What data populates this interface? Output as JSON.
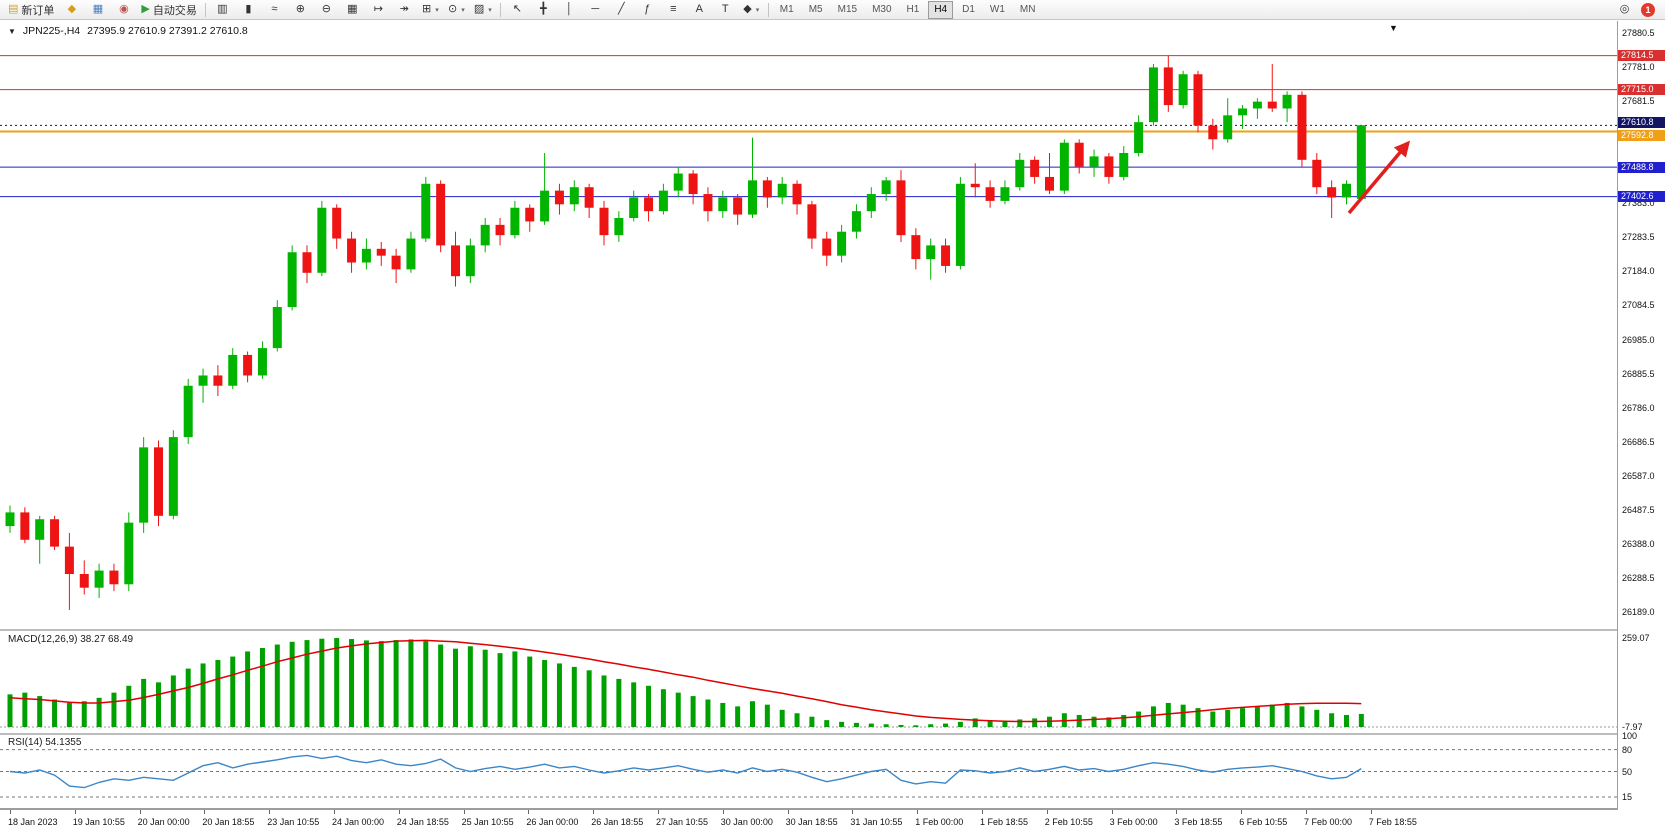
{
  "toolbar": {
    "groups": [
      {
        "name": "trade-group",
        "buttons": [
          {
            "name": "new-order-button",
            "label": "新订单",
            "glyph": "▤",
            "glyph_color": "#c8a23a"
          },
          {
            "name": "profiles-button",
            "glyph": "◆",
            "glyph_color": "#d4a017"
          },
          {
            "name": "charts-grid-button",
            "glyph": "▦",
            "glyph_color": "#4a7ebb"
          },
          {
            "name": "navigator-button",
            "glyph": "◉",
            "glyph_color": "#c0504d"
          },
          {
            "name": "autotrading-button",
            "label": "自动交易",
            "glyph": "▶",
            "glyph_color": "#2e9e3f"
          }
        ]
      },
      {
        "name": "chart-controls-group",
        "buttons": [
          {
            "name": "bar-chart-button",
            "glyph": "▥"
          },
          {
            "name": "candlestick-chart-button",
            "glyph": "▮"
          },
          {
            "name": "line-chart-button",
            "glyph": "≈"
          },
          {
            "name": "zoom-in-button",
            "glyph": "⊕"
          },
          {
            "name": "zoom-out-button",
            "glyph": "⊖"
          },
          {
            "name": "tile-windows-button",
            "glyph": "▦"
          },
          {
            "name": "auto-scroll-button",
            "glyph": "↦"
          },
          {
            "name": "chart-shift-button",
            "glyph": "↠"
          },
          {
            "name": "indicators-button",
            "glyph": "⊞",
            "dropdown": true
          },
          {
            "name": "periods-button",
            "glyph": "⊙",
            "dropdown": true
          },
          {
            "name": "templates-button",
            "glyph": "▨",
            "dropdown": true
          }
        ]
      },
      {
        "name": "draw-tools-group",
        "buttons": [
          {
            "name": "cursor-button",
            "glyph": "↖"
          },
          {
            "name": "crosshair-button",
            "glyph": "╋"
          },
          {
            "name": "vertical-line-button",
            "glyph": "│"
          },
          {
            "name": "horizontal-line-button",
            "glyph": "─"
          },
          {
            "name": "trendline-button",
            "glyph": "╱"
          },
          {
            "name": "fibonacci-button",
            "glyph": "ƒ"
          },
          {
            "name": "channel-button",
            "glyph": "≡"
          },
          {
            "name": "text-button",
            "glyph": "A"
          },
          {
            "name": "label-button",
            "glyph": "T"
          },
          {
            "name": "shapes-button",
            "glyph": "◆",
            "dropdown": true
          }
        ]
      }
    ],
    "timeframes": {
      "options": [
        "M1",
        "M5",
        "M15",
        "M30",
        "H1",
        "H4",
        "D1",
        "W1",
        "MN"
      ],
      "active": "H4"
    },
    "search_glyph": "◎",
    "notification_count": "1"
  },
  "chart": {
    "title_arrow": "▼",
    "symbol_period": "JPN225-,H4",
    "ohlc": "27395.9 27610.9 27391.2 27610.8",
    "object_marker": "▼",
    "price_ticks": [
      "27880.5",
      "27781.0",
      "27681.5",
      "27582.0",
      "27482.5",
      "27383.0",
      "27283.5",
      "27184.0",
      "27084.5",
      "26985.0",
      "26885.5",
      "26786.0",
      "26686.5",
      "26587.0",
      "26487.5",
      "26388.0",
      "26288.5",
      "26189.0"
    ],
    "levels": [
      {
        "name": "resistance-line-1",
        "label": "27814.5",
        "value": 27814.5,
        "color": "#d83030",
        "width": 1,
        "dy": 0
      },
      {
        "name": "resistance-line-2",
        "label": "27715.0",
        "value": 27715.0,
        "color": "#d83030",
        "width": 1,
        "dy": 0
      },
      {
        "name": "pivot-line",
        "label": "27592.8",
        "value": 27592.8,
        "color": "#f0a018",
        "width": 2,
        "dy": 4
      },
      {
        "name": "support-line-1",
        "label": "27488.8",
        "value": 27488.8,
        "color": "#2020cc",
        "width": 1,
        "dy": 0
      },
      {
        "name": "support-line-2",
        "label": "27402.6",
        "value": 27402.6,
        "color": "#2020cc",
        "width": 1,
        "dy": 0
      }
    ],
    "current_price": {
      "label": "27610.8",
      "value": 27610.8,
      "badge_color": "#141464",
      "dy": -3
    },
    "arrow_annotation": {
      "color": "#e21f1f"
    },
    "time_labels": [
      "18 Jan 2023",
      "19 Jan 10:55",
      "20 Jan 00:00",
      "20 Jan 18:55",
      "23 Jan 10:55",
      "24 Jan 00:00",
      "24 Jan 18:55",
      "25 Jan 10:55",
      "26 Jan 00:00",
      "26 Jan 18:55",
      "27 Jan 10:55",
      "30 Jan 00:00",
      "30 Jan 18:55",
      "31 Jan 10:55",
      "1 Feb 00:00",
      "1 Feb 18:55",
      "2 Feb 10:55",
      "3 Feb 00:00",
      "3 Feb 18:55",
      "6 Feb 10:55",
      "7 Feb 00:00",
      "7 Feb 18:55"
    ]
  },
  "chart_data": {
    "type": "candlestick",
    "symbol": "JPN225-",
    "period": "H4",
    "up_color": "#00b400",
    "down_color": "#ee1414",
    "ylim": [
      26189.0,
      27880.5
    ],
    "candles": [
      [
        26440,
        26500,
        26420,
        26480
      ],
      [
        26480,
        26495,
        26390,
        26400
      ],
      [
        26400,
        26470,
        26330,
        26460
      ],
      [
        26460,
        26470,
        26370,
        26380
      ],
      [
        26380,
        26420,
        26195,
        26300
      ],
      [
        26300,
        26340,
        26240,
        26260
      ],
      [
        26260,
        26330,
        26230,
        26310
      ],
      [
        26310,
        26330,
        26250,
        26270
      ],
      [
        26270,
        26480,
        26250,
        26450
      ],
      [
        26450,
        26700,
        26420,
        26670
      ],
      [
        26670,
        26690,
        26440,
        26470
      ],
      [
        26470,
        26720,
        26460,
        26700
      ],
      [
        26700,
        26870,
        26680,
        26850
      ],
      [
        26850,
        26900,
        26800,
        26880
      ],
      [
        26880,
        26910,
        26820,
        26850
      ],
      [
        26850,
        26960,
        26840,
        26940
      ],
      [
        26940,
        26950,
        26860,
        26880
      ],
      [
        26880,
        26980,
        26870,
        26960
      ],
      [
        26960,
        27100,
        26950,
        27080
      ],
      [
        27080,
        27260,
        27070,
        27240
      ],
      [
        27240,
        27260,
        27150,
        27180
      ],
      [
        27180,
        27390,
        27170,
        27370
      ],
      [
        27370,
        27380,
        27250,
        27280
      ],
      [
        27280,
        27300,
        27180,
        27210
      ],
      [
        27210,
        27280,
        27190,
        27250
      ],
      [
        27250,
        27270,
        27200,
        27230
      ],
      [
        27230,
        27250,
        27150,
        27190
      ],
      [
        27190,
        27300,
        27180,
        27280
      ],
      [
        27280,
        27460,
        27270,
        27440
      ],
      [
        27440,
        27450,
        27240,
        27260
      ],
      [
        27260,
        27300,
        27140,
        27170
      ],
      [
        27170,
        27280,
        27150,
        27260
      ],
      [
        27260,
        27340,
        27240,
        27320
      ],
      [
        27320,
        27340,
        27260,
        27290
      ],
      [
        27290,
        27390,
        27280,
        27370
      ],
      [
        27370,
        27380,
        27300,
        27330
      ],
      [
        27330,
        27530,
        27320,
        27420
      ],
      [
        27420,
        27440,
        27350,
        27380
      ],
      [
        27380,
        27450,
        27360,
        27430
      ],
      [
        27430,
        27440,
        27340,
        27370
      ],
      [
        27370,
        27390,
        27260,
        27290
      ],
      [
        27290,
        27360,
        27270,
        27340
      ],
      [
        27340,
        27420,
        27330,
        27400
      ],
      [
        27400,
        27410,
        27330,
        27360
      ],
      [
        27360,
        27440,
        27350,
        27420
      ],
      [
        27420,
        27490,
        27400,
        27470
      ],
      [
        27470,
        27480,
        27380,
        27410
      ],
      [
        27410,
        27430,
        27330,
        27360
      ],
      [
        27360,
        27420,
        27340,
        27400
      ],
      [
        27400,
        27410,
        27320,
        27350
      ],
      [
        27350,
        27575,
        27340,
        27450
      ],
      [
        27450,
        27460,
        27370,
        27400
      ],
      [
        27400,
        27460,
        27380,
        27440
      ],
      [
        27440,
        27450,
        27350,
        27380
      ],
      [
        27380,
        27390,
        27250,
        27280
      ],
      [
        27280,
        27300,
        27200,
        27230
      ],
      [
        27230,
        27320,
        27210,
        27300
      ],
      [
        27300,
        27380,
        27280,
        27360
      ],
      [
        27360,
        27430,
        27340,
        27410
      ],
      [
        27410,
        27460,
        27390,
        27450
      ],
      [
        27450,
        27480,
        27270,
        27290
      ],
      [
        27290,
        27310,
        27190,
        27220
      ],
      [
        27220,
        27280,
        27160,
        27260
      ],
      [
        27260,
        27280,
        27180,
        27200
      ],
      [
        27200,
        27460,
        27190,
        27440
      ],
      [
        27440,
        27500,
        27400,
        27430
      ],
      [
        27430,
        27450,
        27370,
        27390
      ],
      [
        27390,
        27450,
        27380,
        27430
      ],
      [
        27430,
        27530,
        27420,
        27510
      ],
      [
        27510,
        27520,
        27440,
        27460
      ],
      [
        27460,
        27530,
        27410,
        27420
      ],
      [
        27420,
        27570,
        27410,
        27560
      ],
      [
        27560,
        27570,
        27470,
        27490
      ],
      [
        27490,
        27540,
        27460,
        27520
      ],
      [
        27520,
        27530,
        27440,
        27460
      ],
      [
        27460,
        27550,
        27450,
        27530
      ],
      [
        27530,
        27640,
        27520,
        27620
      ],
      [
        27620,
        27790,
        27610,
        27780
      ],
      [
        27780,
        27815,
        27650,
        27670
      ],
      [
        27670,
        27770,
        27660,
        27760
      ],
      [
        27760,
        27770,
        27590,
        27610
      ],
      [
        27610,
        27630,
        27540,
        27570
      ],
      [
        27570,
        27690,
        27560,
        27640
      ],
      [
        27640,
        27670,
        27600,
        27660
      ],
      [
        27660,
        27690,
        27630,
        27680
      ],
      [
        27680,
        27790,
        27650,
        27660
      ],
      [
        27660,
        27710,
        27620,
        27700
      ],
      [
        27700,
        27710,
        27490,
        27510
      ],
      [
        27510,
        27530,
        27410,
        27430
      ],
      [
        27430,
        27450,
        27340,
        27400
      ],
      [
        27400,
        27450,
        27380,
        27440
      ],
      [
        27396,
        27611,
        27391,
        27611
      ]
    ],
    "indicators": [
      {
        "type": "macd",
        "label": "MACD(12,26,9) 38.27 68.49",
        "histogram_color": "#00a000",
        "signal_color": "#e00000",
        "axis_labels": [
          "259.07",
          "-7.97"
        ],
        "histogram": [
          95,
          100,
          90,
          80,
          70,
          75,
          85,
          100,
          120,
          140,
          130,
          150,
          170,
          185,
          195,
          205,
          220,
          230,
          240,
          248,
          253,
          257,
          259,
          256,
          252,
          250,
          253,
          255,
          250,
          240,
          228,
          235,
          225,
          215,
          220,
          205,
          195,
          185,
          175,
          165,
          150,
          140,
          130,
          120,
          110,
          100,
          90,
          80,
          70,
          60,
          75,
          65,
          50,
          40,
          30,
          20,
          15,
          12,
          10,
          8,
          6,
          5,
          8,
          10,
          15,
          25,
          20,
          18,
          22,
          25,
          30,
          40,
          35,
          30,
          28,
          35,
          45,
          60,
          70,
          65,
          55,
          45,
          50,
          55,
          60,
          65,
          70,
          60,
          50,
          40,
          35,
          38
        ],
        "signal": [
          85,
          82,
          80,
          76,
          72,
          70,
          70,
          74,
          78,
          86,
          95,
          105,
          115,
          127,
          140,
          152,
          165,
          177,
          190,
          201,
          212,
          221,
          230,
          236,
          242,
          246,
          250,
          251,
          252,
          250,
          248,
          244,
          240,
          235,
          230,
          224,
          218,
          212,
          205,
          198,
          190,
          183,
          175,
          168,
          160,
          152,
          145,
          136,
          128,
          120,
          112,
          105,
          98,
          90,
          82,
          74,
          65,
          58,
          50,
          44,
          38,
          32,
          28,
          25,
          22,
          20,
          18,
          17,
          16,
          16,
          17,
          18,
          20,
          22,
          24,
          27,
          30,
          34,
          38,
          42,
          46,
          50,
          54,
          57,
          60,
          63,
          66,
          68,
          69,
          69,
          69,
          68
        ]
      },
      {
        "type": "rsi",
        "label": "RSI(14) 54.1355",
        "line_color": "#3a86c8",
        "levels": [
          80,
          50,
          15
        ],
        "axis_labels": [
          "100",
          "80",
          "50",
          "15"
        ],
        "values": [
          50,
          48,
          52,
          45,
          30,
          28,
          35,
          40,
          38,
          42,
          40,
          38,
          48,
          58,
          62,
          55,
          60,
          63,
          66,
          70,
          72,
          68,
          71,
          65,
          62,
          66,
          60,
          58,
          61,
          67,
          55,
          50,
          54,
          57,
          53,
          56,
          60,
          55,
          57,
          52,
          48,
          51,
          55,
          52,
          55,
          58,
          53,
          49,
          52,
          48,
          55,
          50,
          53,
          49,
          42,
          36,
          40,
          45,
          50,
          53,
          38,
          33,
          36,
          34,
          52,
          51,
          48,
          50,
          55,
          50,
          53,
          57,
          52,
          54,
          50,
          53,
          58,
          62,
          60,
          57,
          52,
          49,
          53,
          55,
          56,
          58,
          54,
          50,
          44,
          40,
          42,
          54
        ]
      }
    ]
  }
}
